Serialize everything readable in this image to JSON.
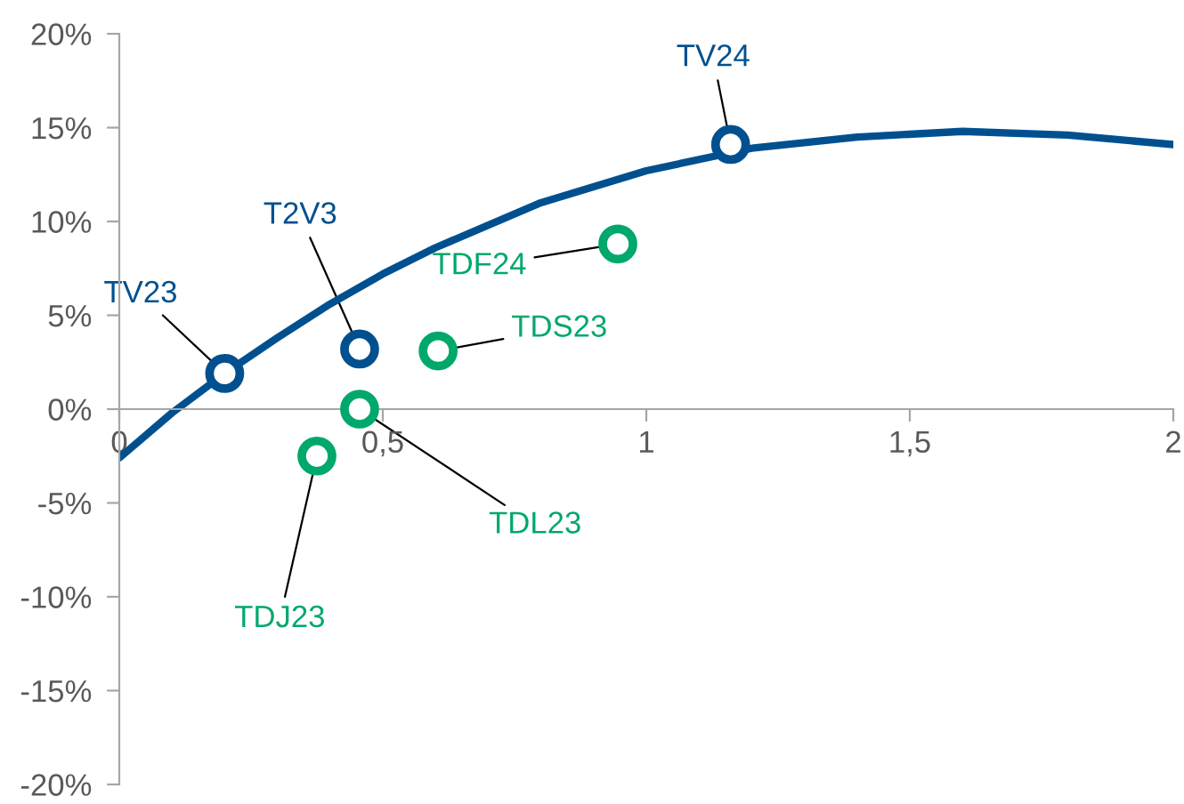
{
  "chart_data": {
    "type": "scatter",
    "xlim": [
      0,
      2
    ],
    "xticks": [
      0,
      {
        "value": 0.5,
        "label": "0,5"
      },
      1,
      {
        "value": 1.5,
        "label": "1,5"
      },
      2
    ],
    "ylim": [
      -20,
      20
    ],
    "yticks": [
      {
        "value": -20,
        "label": "-20%"
      },
      {
        "value": -15,
        "label": "-15%"
      },
      {
        "value": -10,
        "label": "-10%"
      },
      {
        "value": -5,
        "label": "-5%"
      },
      {
        "value": 0,
        "label": "0%"
      },
      {
        "value": 5,
        "label": "5%"
      },
      {
        "value": 10,
        "label": "10%"
      },
      {
        "value": 15,
        "label": "15%"
      },
      {
        "value": 20,
        "label": "20%"
      }
    ],
    "grid": false,
    "series": [
      {
        "type": "line",
        "marker": "none",
        "color": "#00508f",
        "x": [
          0,
          0.1,
          0.2,
          0.3,
          0.4,
          0.5,
          0.6,
          0.8,
          1.0,
          1.2,
          1.4,
          1.6,
          1.8,
          2.0
        ],
        "values": [
          -2.6,
          -0.2,
          1.9,
          3.8,
          5.6,
          7.2,
          8.6,
          11.0,
          12.7,
          13.9,
          14.5,
          14.8,
          14.6,
          14.1
        ]
      },
      {
        "marker": "circle",
        "color": "#00508f",
        "x": [
          0.2,
          0.456,
          1.16
        ],
        "values": [
          1.9,
          3.2,
          14.1
        ]
      },
      {
        "marker": "circle",
        "color": "#00a86b",
        "x": [
          0.946,
          0.605,
          0.456,
          0.375
        ],
        "values": [
          8.8,
          3.1,
          0.0,
          -2.5
        ]
      }
    ],
    "annotations": [
      {
        "text": "TV23",
        "x": 0.2,
        "y": 1.9
      },
      {
        "text": "T2V3",
        "x": 0.456,
        "y": 3.2
      },
      {
        "text": "TV24",
        "x": 1.16,
        "y": 14.1
      },
      {
        "text": "TDF24",
        "x": 0.946,
        "y": 8.8
      },
      {
        "text": "TDS23",
        "x": 0.605,
        "y": 3.1
      },
      {
        "text": "TDL23",
        "x": 0.456,
        "y": 0.0
      },
      {
        "text": "TDJ23",
        "x": 0.375,
        "y": -2.5
      }
    ]
  }
}
